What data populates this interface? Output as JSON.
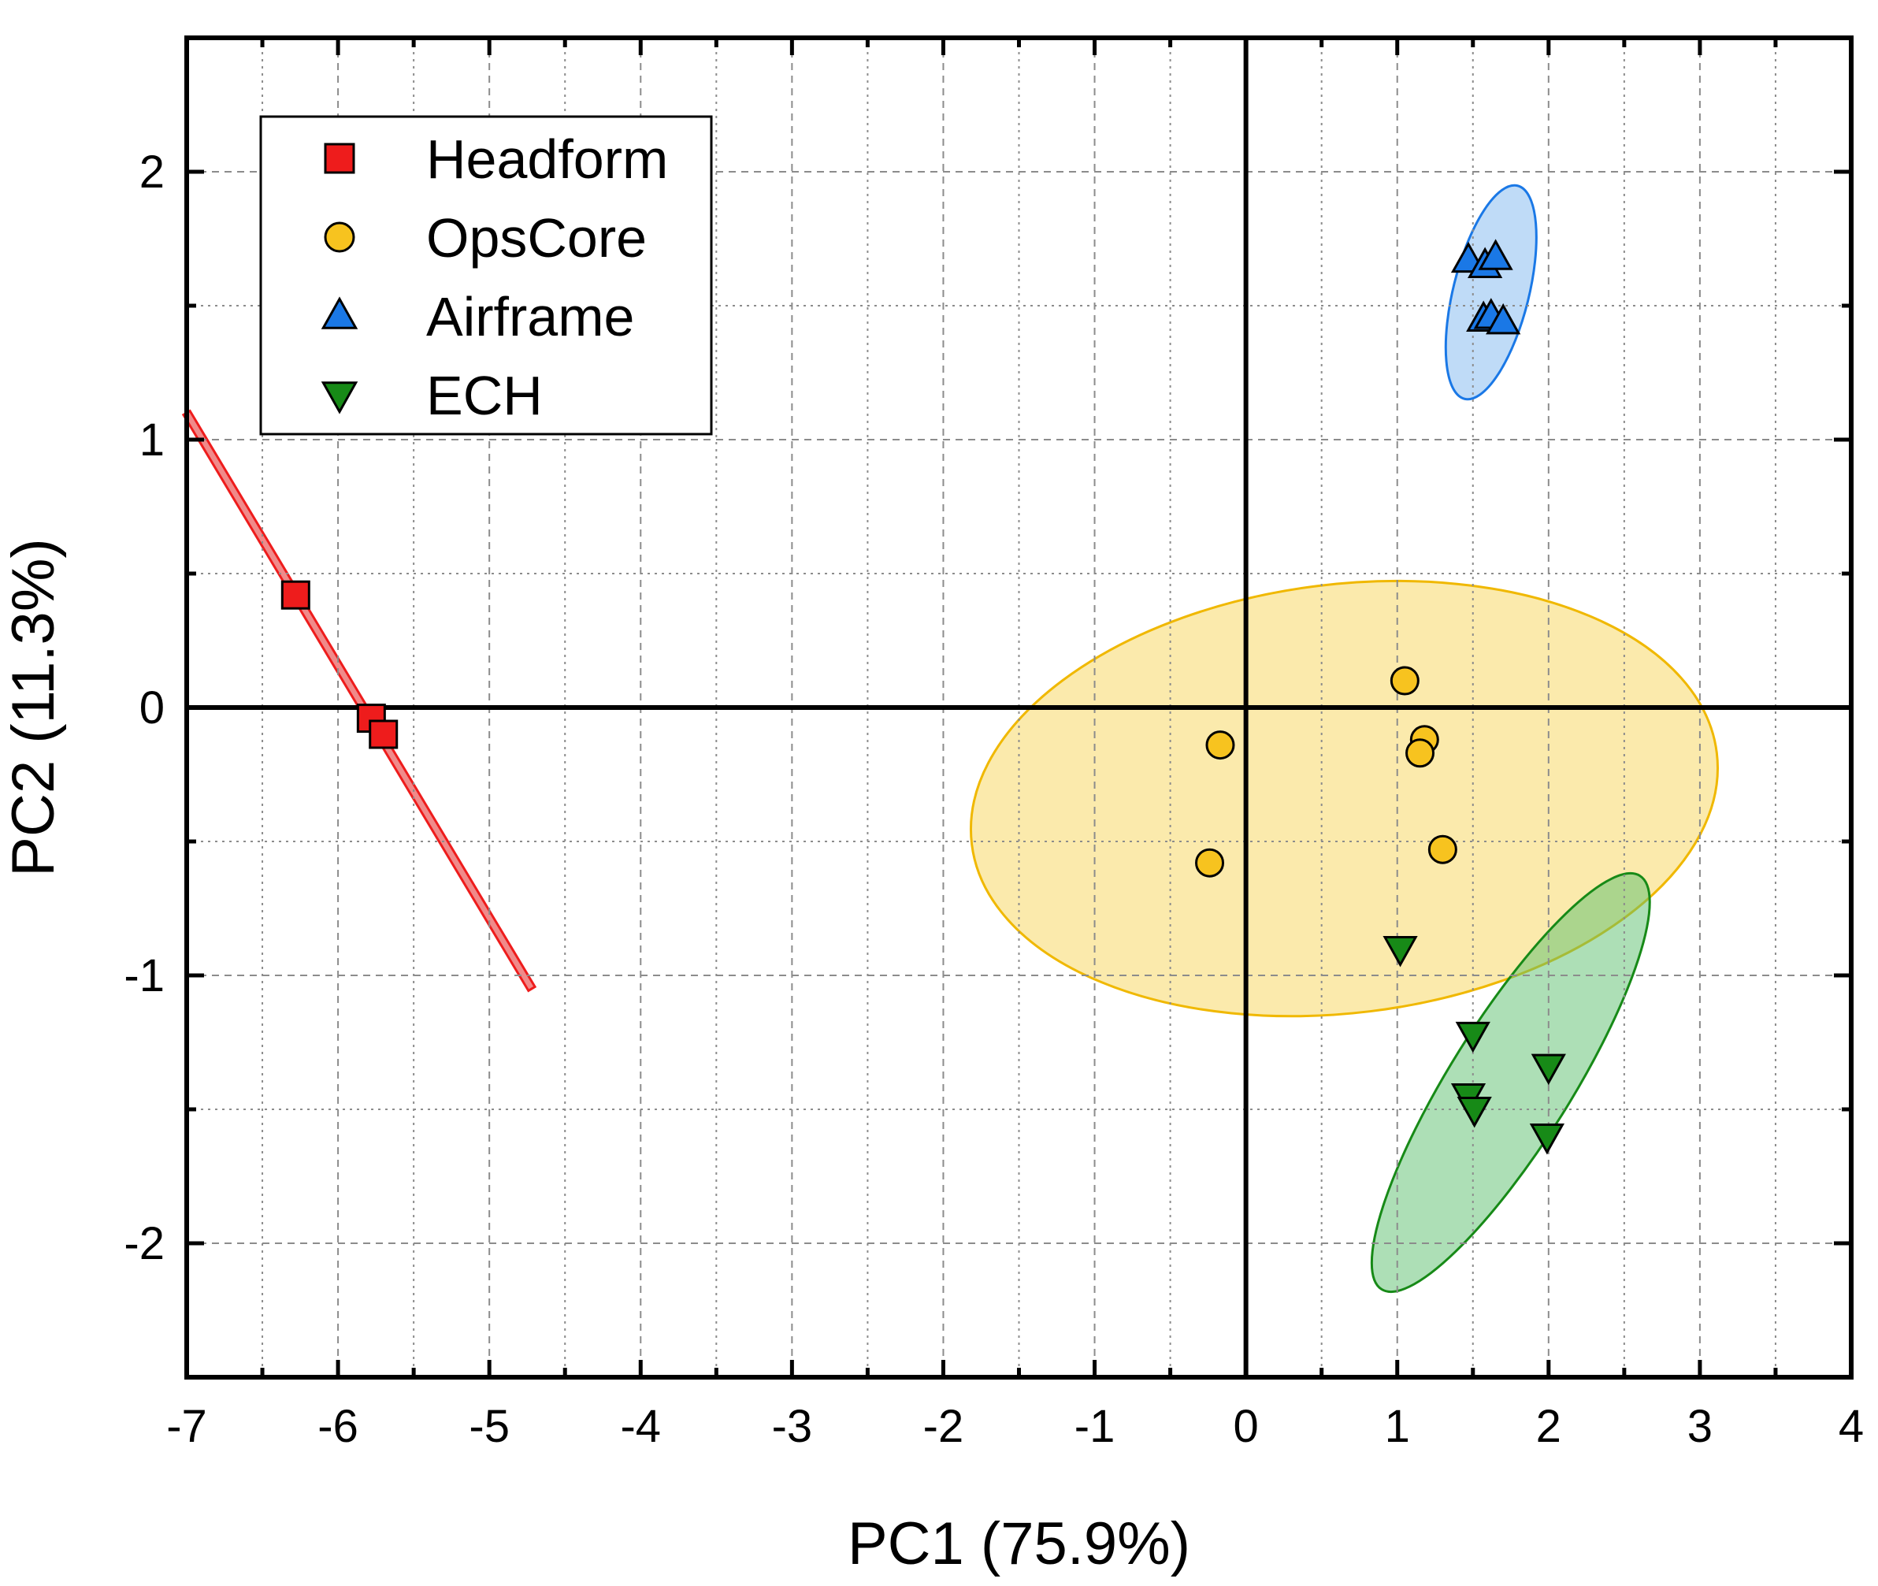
{
  "chart_data": {
    "type": "scatter",
    "title": "",
    "xlabel": "PC1 (75.9%)",
    "ylabel": "PC2 (11.3%)",
    "xlim": [
      -7,
      4
    ],
    "ylim": [
      -2.5,
      2.5
    ],
    "xticks": [
      -7,
      -6,
      -5,
      -4,
      -3,
      -2,
      -1,
      0,
      1,
      2,
      3,
      4
    ],
    "yticks": [
      -2,
      -1,
      0,
      1,
      2
    ],
    "xtick_labels": [
      "-7",
      "-6",
      "-5",
      "-4",
      "-3",
      "-2",
      "-1",
      "0",
      "1",
      "2",
      "3",
      "4"
    ],
    "ytick_labels": [
      "-2",
      "-1",
      "0",
      "1",
      "2"
    ],
    "grid": true,
    "legend_position": "top-left",
    "series": [
      {
        "name": "Headform",
        "marker": "square",
        "color": "#ee1c1c",
        "points": [
          [
            -6.28,
            0.42
          ],
          [
            -5.78,
            -0.04
          ],
          [
            -5.7,
            -0.1
          ]
        ],
        "confidence_ellipse": {
          "type": "line",
          "from": [
            -7.0,
            1.1
          ],
          "to": [
            -4.72,
            -1.05
          ],
          "width": 0.05,
          "fill": "#f08a8a"
        }
      },
      {
        "name": "OpsCore",
        "marker": "circle",
        "color": "#f7c31f",
        "points": [
          [
            -0.17,
            -0.14
          ],
          [
            -0.24,
            -0.58
          ],
          [
            1.05,
            0.1
          ],
          [
            1.18,
            -0.12
          ],
          [
            1.15,
            -0.17
          ],
          [
            1.3,
            -0.53
          ]
        ],
        "confidence_ellipse": {
          "type": "ellipse",
          "center": [
            0.65,
            -0.34
          ],
          "rx": 2.48,
          "ry": 0.8,
          "angle_deg": 7,
          "fill": "#f8d55a",
          "stroke": "#f0b800"
        }
      },
      {
        "name": "Airframe",
        "marker": "triangle-up",
        "color": "#1a78e6",
        "points": [
          [
            1.47,
            1.67
          ],
          [
            1.58,
            1.65
          ],
          [
            1.65,
            1.68
          ],
          [
            1.57,
            1.45
          ],
          [
            1.62,
            1.46
          ],
          [
            1.7,
            1.44
          ]
        ],
        "confidence_ellipse": {
          "type": "ellipse",
          "center": [
            1.62,
            1.55
          ],
          "rx": 0.25,
          "ry": 0.41,
          "angle_deg": -14,
          "fill": "#7fb8f0",
          "stroke": "#1a78e6"
        }
      },
      {
        "name": "ECH",
        "marker": "triangle-down",
        "color": "#178a17",
        "points": [
          [
            1.02,
            -0.9
          ],
          [
            1.5,
            -1.22
          ],
          [
            1.47,
            -1.45
          ],
          [
            1.51,
            -1.5
          ],
          [
            2.0,
            -1.34
          ],
          [
            1.99,
            -1.6
          ]
        ],
        "confidence_ellipse": {
          "type": "ellipse",
          "center": [
            1.75,
            -1.4
          ],
          "rx": 0.4,
          "ry": 0.91,
          "angle_deg": -32,
          "fill": "#5cbf6e",
          "stroke": "#178a17"
        }
      }
    ]
  }
}
